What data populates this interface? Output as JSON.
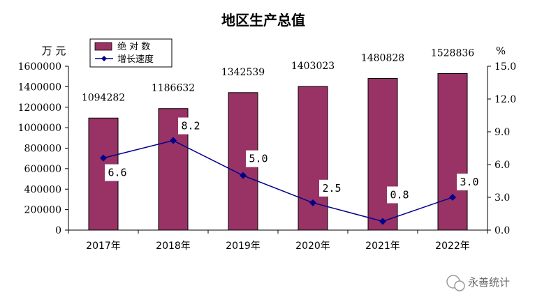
{
  "chart_data": {
    "type": "bar",
    "title": "地区生产总值",
    "categories": [
      "2017年",
      "2018年",
      "2019年",
      "2020年",
      "2021年",
      "2022年"
    ],
    "series": [
      {
        "name": "绝 对 数",
        "type": "bar",
        "axis": "left",
        "values": [
          1094282,
          1186632,
          1342539,
          1403023,
          1480828,
          1528836
        ],
        "labels": [
          "1094282",
          "1186632",
          "1342539",
          "1403023",
          "1480828",
          "1528836"
        ],
        "color": "#993366"
      },
      {
        "name": "增长速度",
        "type": "line",
        "axis": "right",
        "values": [
          6.6,
          8.2,
          5.0,
          2.5,
          0.8,
          3.0
        ],
        "labels": [
          "6.6",
          "8.2",
          "5.0",
          "2.5",
          "0.8",
          "3.0"
        ],
        "color": "#00008B"
      }
    ],
    "yleft": {
      "label": "万 元",
      "ylim": [
        0,
        1600000
      ],
      "ticks": [
        0,
        200000,
        400000,
        600000,
        800000,
        1000000,
        1200000,
        1400000,
        1600000
      ],
      "tick_labels": [
        "0",
        "200000",
        "400000",
        "600000",
        "800000",
        "1000000",
        "1200000",
        "1400000",
        "1600000"
      ]
    },
    "yright": {
      "label": "%",
      "ylim": [
        0,
        15
      ],
      "ticks": [
        0,
        3,
        6,
        9,
        12,
        15
      ],
      "tick_labels": [
        "0.0",
        "3.0",
        "6.0",
        "9.0",
        "12.0",
        "15.0"
      ]
    },
    "legend": "top-left",
    "grid": false
  },
  "watermark": {
    "text": "永善统计"
  }
}
